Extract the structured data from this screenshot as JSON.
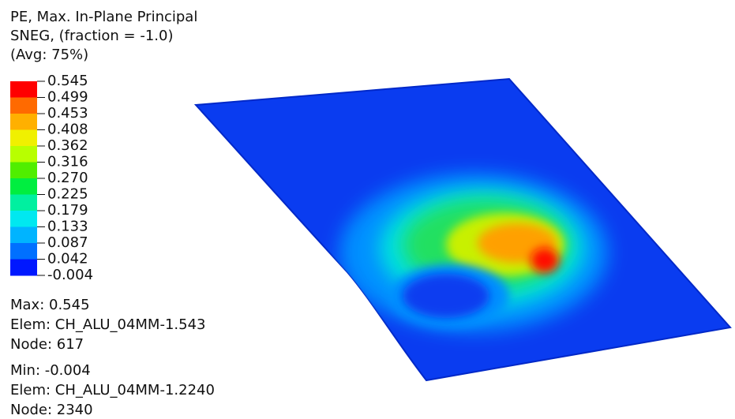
{
  "legend": {
    "title": [
      "PE, Max. In-Plane Principal",
      "SNEG, (fraction = -1.0)",
      "(Avg: 75%)"
    ],
    "ticks": [
      "0.545",
      "0.499",
      "0.453",
      "0.408",
      "0.362",
      "0.316",
      "0.270",
      "0.225",
      "0.179",
      "0.133",
      "0.087",
      "0.042",
      "-0.004"
    ],
    "colors": [
      "#ff0000",
      "#ff6a00",
      "#ffb000",
      "#f0f000",
      "#b8ff00",
      "#50ee00",
      "#00ee40",
      "#00f0a0",
      "#00e8f0",
      "#00b4ff",
      "#0070ff",
      "#0018ff"
    ]
  },
  "info": {
    "max": [
      "Max: 0.545",
      "Elem: CH_ALU_04MM-1.543",
      "Node: 617"
    ],
    "min": [
      "Min: -0.004",
      "Elem: CH_ALU_04MM-1.2240",
      "Node: 2340"
    ]
  }
}
